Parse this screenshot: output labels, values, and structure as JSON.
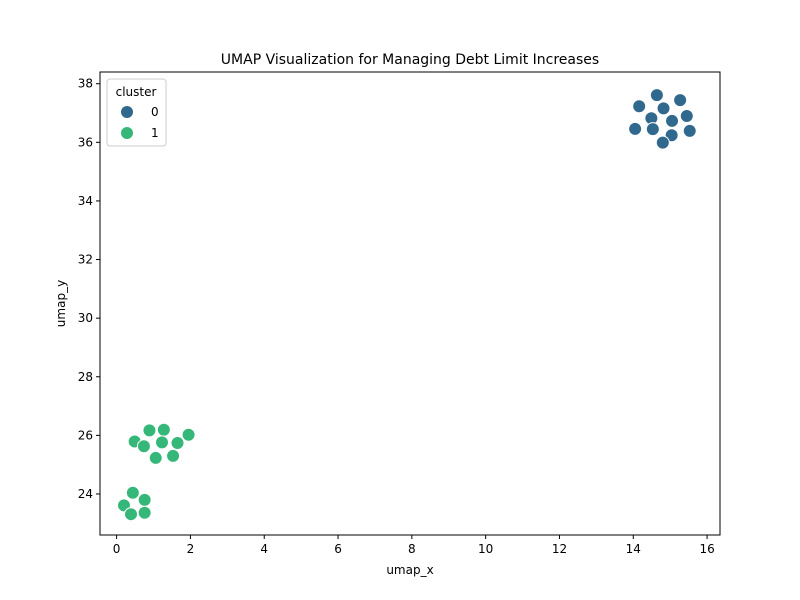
{
  "chart_data": {
    "type": "scatter",
    "title": "UMAP Visualization for Managing Debt Limit Increases",
    "xlabel": "umap_x",
    "ylabel": "umap_y",
    "xlim": [
      -0.45,
      16.35
    ],
    "ylim": [
      22.6,
      38.4
    ],
    "xticks": [
      0,
      2,
      4,
      6,
      8,
      10,
      12,
      14,
      16
    ],
    "yticks": [
      24,
      26,
      28,
      30,
      32,
      34,
      36,
      38
    ],
    "xtick_labels": [
      "0",
      "2",
      "4",
      "6",
      "8",
      "10",
      "12",
      "14",
      "16"
    ],
    "ytick_labels": [
      "24",
      "26",
      "28",
      "30",
      "32",
      "34",
      "36",
      "38"
    ],
    "grid": false,
    "legend": {
      "title": "cluster",
      "position": "top-left"
    },
    "series": [
      {
        "name": "0",
        "color": "#31688e",
        "points": [
          {
            "x": 14.64,
            "y": 37.61
          },
          {
            "x": 15.27,
            "y": 37.44
          },
          {
            "x": 14.16,
            "y": 37.23
          },
          {
            "x": 14.82,
            "y": 37.16
          },
          {
            "x": 15.45,
            "y": 36.9
          },
          {
            "x": 14.49,
            "y": 36.82
          },
          {
            "x": 15.05,
            "y": 36.73
          },
          {
            "x": 14.05,
            "y": 36.46
          },
          {
            "x": 14.53,
            "y": 36.45
          },
          {
            "x": 15.53,
            "y": 36.39
          },
          {
            "x": 15.04,
            "y": 36.24
          },
          {
            "x": 14.8,
            "y": 35.99
          }
        ]
      },
      {
        "name": "1",
        "color": "#35b779",
        "points": [
          {
            "x": 0.89,
            "y": 26.17
          },
          {
            "x": 1.28,
            "y": 26.19
          },
          {
            "x": 1.95,
            "y": 26.02
          },
          {
            "x": 0.49,
            "y": 25.79
          },
          {
            "x": 1.23,
            "y": 25.76
          },
          {
            "x": 1.65,
            "y": 25.74
          },
          {
            "x": 0.74,
            "y": 25.63
          },
          {
            "x": 1.06,
            "y": 25.23
          },
          {
            "x": 1.53,
            "y": 25.3
          },
          {
            "x": 0.44,
            "y": 24.04
          },
          {
            "x": 0.76,
            "y": 23.8
          },
          {
            "x": 0.2,
            "y": 23.61
          },
          {
            "x": 0.76,
            "y": 23.36
          },
          {
            "x": 0.39,
            "y": 23.31
          }
        ]
      }
    ]
  }
}
